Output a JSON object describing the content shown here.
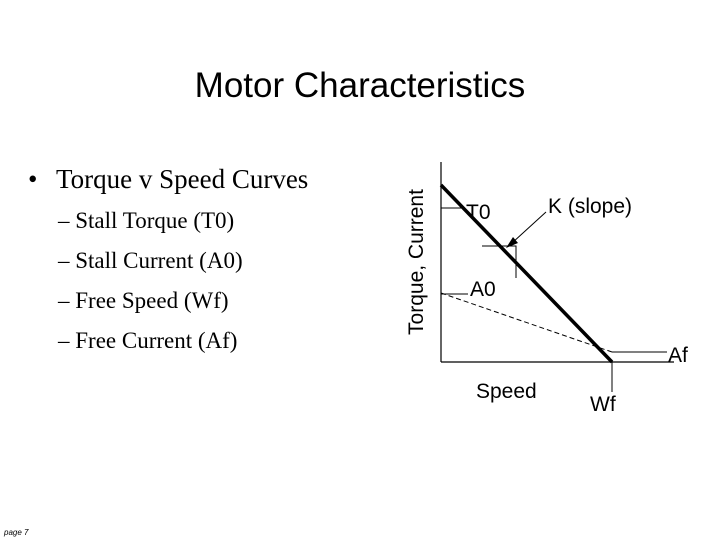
{
  "slide": {
    "title": "Motor Characteristics",
    "bullet_symbol": "•",
    "bullet": "Torque v Speed Curves",
    "sub_items": [
      "– Stall Torque (T0)",
      "– Stall Current (A0)",
      "– Free Speed (Wf)",
      "– Free Current (Af)"
    ],
    "footer": "page 7"
  },
  "diagram": {
    "y_axis_label": "Torque, Current",
    "x_axis_label": "Speed",
    "labels": {
      "t0": "T0",
      "a0": "A0",
      "slope": "K (slope)",
      "af": "Af",
      "wf": "Wf"
    }
  }
}
